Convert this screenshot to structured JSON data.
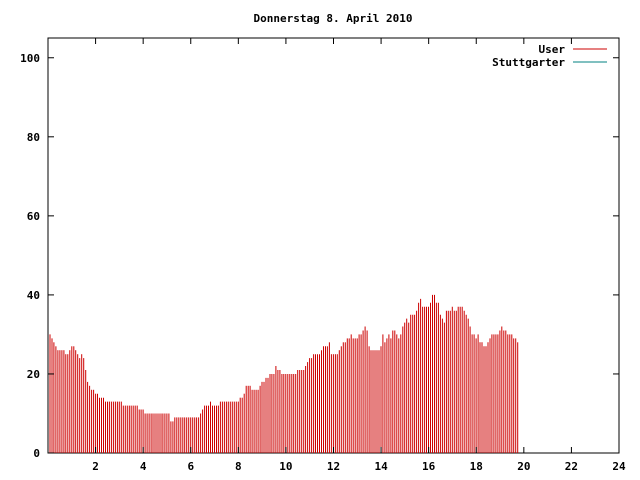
{
  "chart_data": {
    "type": "bar",
    "title": "Donnerstag 8. April 2010",
    "xlabel": "",
    "ylabel": "",
    "xlim": [
      0,
      24
    ],
    "ylim": [
      0,
      105
    ],
    "x_ticks": [
      2,
      4,
      6,
      8,
      10,
      12,
      14,
      16,
      18,
      20,
      22,
      24
    ],
    "y_ticks": [
      0,
      20,
      40,
      60,
      80,
      100
    ],
    "grid": false,
    "legend_position": "top-right",
    "x_start": 0.0833,
    "x_step": 0.0833,
    "series": [
      {
        "name": "User",
        "color": "#cc0000",
        "values": [
          30,
          29,
          28,
          27,
          26,
          26,
          26,
          26,
          25,
          25,
          26,
          27,
          27,
          26,
          25,
          24,
          25,
          24,
          21,
          18,
          17,
          16,
          16,
          15,
          15,
          14,
          14,
          14,
          13,
          13,
          13,
          13,
          13,
          13,
          13,
          13,
          13,
          12,
          12,
          12,
          12,
          12,
          12,
          12,
          12,
          11,
          11,
          11,
          10,
          10,
          10,
          10,
          10,
          10,
          10,
          10,
          10,
          10,
          10,
          10,
          10,
          8,
          8,
          9,
          9,
          9,
          9,
          9,
          9,
          9,
          9,
          9,
          9,
          9,
          9,
          9,
          10,
          11,
          12,
          12,
          12,
          13,
          12,
          12,
          12,
          12,
          13,
          13,
          13,
          13,
          13,
          13,
          13,
          13,
          13,
          13,
          14,
          14,
          15,
          17,
          17,
          17,
          16,
          16,
          16,
          16,
          17,
          18,
          18,
          19,
          19,
          20,
          20,
          20,
          22,
          21,
          21,
          20,
          20,
          20,
          20,
          20,
          20,
          20,
          20,
          21,
          21,
          21,
          21,
          22,
          23,
          24,
          24,
          25,
          25,
          25,
          25,
          26,
          27,
          27,
          27,
          28,
          25,
          25,
          25,
          25,
          26,
          27,
          28,
          28,
          29,
          29,
          30,
          29,
          29,
          29,
          30,
          30,
          31,
          32,
          31,
          27,
          26,
          26,
          26,
          26,
          26,
          27,
          30,
          28,
          29,
          30,
          29,
          31,
          31,
          30,
          29,
          30,
          32,
          33,
          34,
          33,
          35,
          35,
          35,
          36,
          38,
          39,
          37,
          37,
          37,
          37,
          38,
          40,
          40,
          38,
          38,
          35,
          34,
          33,
          36,
          36,
          36,
          37,
          36,
          36,
          37,
          37,
          37,
          36,
          35,
          34,
          32,
          30,
          30,
          29,
          30,
          28,
          28,
          27,
          27,
          28,
          29,
          30,
          30,
          30,
          30,
          31,
          32,
          31,
          31,
          30,
          30,
          30,
          29,
          29,
          28
        ]
      },
      {
        "name": "Stuttgarter",
        "color": "#008080",
        "values": []
      }
    ]
  }
}
